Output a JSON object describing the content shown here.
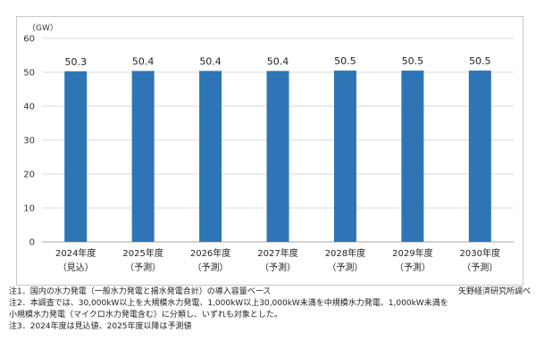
{
  "chart_data": {
    "type": "bar",
    "unit_label": "（GW）",
    "categories": [
      "2024年度",
      "2025年度",
      "2026年度",
      "2027年度",
      "2028年度",
      "2029年度",
      "2030年度"
    ],
    "sublabels": [
      "（見込）",
      "（予測）",
      "（予測）",
      "（予測）",
      "（予測）",
      "（予測）",
      "（予測）"
    ],
    "values": [
      50.3,
      50.4,
      50.4,
      50.4,
      50.5,
      50.5,
      50.5
    ],
    "data_labels": [
      "50.3",
      "50.4",
      "50.4",
      "50.4",
      "50.5",
      "50.5",
      "50.5"
    ],
    "yticks": [
      0,
      10,
      20,
      30,
      40,
      50,
      60
    ],
    "ylim": [
      0,
      60
    ],
    "grid": true,
    "bar_color": "#2e75b6",
    "grid_color": "#d9d9d9"
  },
  "notes": [
    "注1．国内の水力発電（一般水力発電と揚水発電合計）の導入容量ベース",
    "注2．本調査では、30,000kW以上を大規模水力発電、1,000kW以上30,000kW未満を中規模水力発電、1,000kW未満を",
    "小規模水力発電（マイクロ水力発電含む）に分類し、いずれも対象とした。",
    "注3．2024年度は見込値、2025年度以降は予測値"
  ],
  "source": "矢野経済研究所調べ"
}
